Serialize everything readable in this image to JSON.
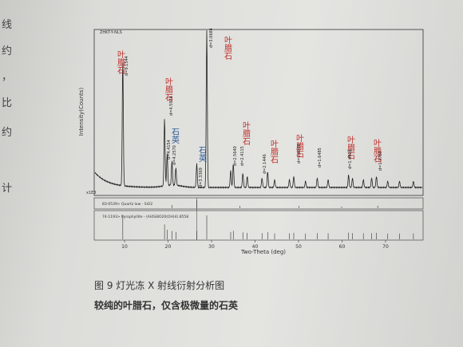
{
  "margin_text": [
    "线",
    "约",
    "，",
    "比",
    "约",
    "计"
  ],
  "figure": {
    "header": "ZHKT-Y-NLS",
    "y_label": "Intensity(Counts)",
    "x_label": "Two-Theta (deg)",
    "x_ticks": [
      "10",
      "20",
      "30",
      "40",
      "50",
      "60",
      "70"
    ],
    "scale": "x1E3",
    "peak_labels": [
      "叶腊石",
      "叶腊石",
      "石英",
      "石英",
      "叶腊石",
      "叶腊石",
      "叶腊石",
      "叶腊石",
      "叶腊石",
      "叶腊石"
    ],
    "d_labels": [
      "d=9.1544",
      "d=4.5974",
      "d=4.4154",
      "d=4.2570",
      "d=3.3369",
      "d=3.0684",
      "d=2.5640",
      "d=2.4115",
      "d=2.1446",
      "d=1.8990",
      "d=1.6485",
      "d=1.4918",
      "d=1.3780"
    ],
    "reference_patterns": [
      "83-0539> Quartz low - SiO2",
      "74-1193> Pyrophyllite - (Al4Si8O20(OH)4).8558"
    ]
  },
  "caption": {
    "title": "图 9  灯光冻 X 射线衍射分析图",
    "subtitle": "较纯的叶腊石，仅含极微量的石英"
  }
}
